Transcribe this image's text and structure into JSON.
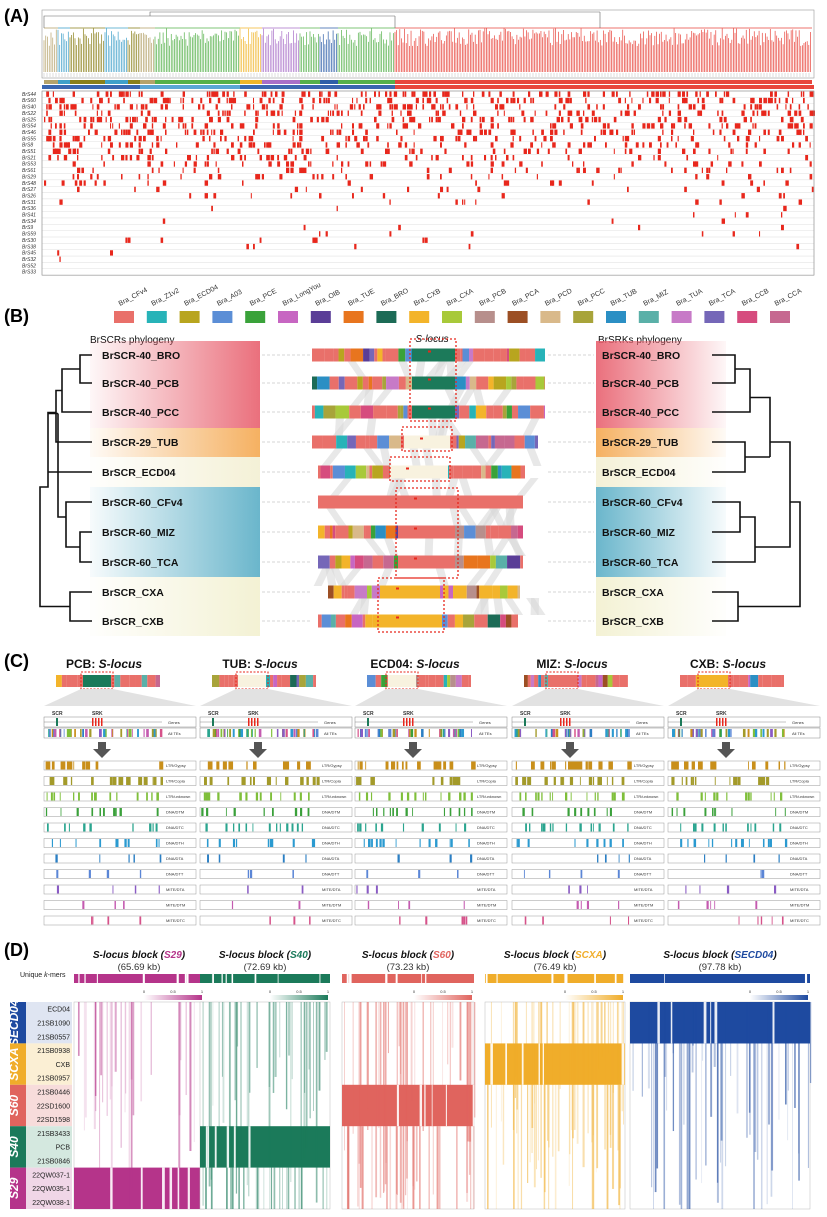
{
  "panels": {
    "a": "(A)",
    "b": "(B)",
    "c": "(C)",
    "d": "(D)"
  },
  "panelA": {
    "rows": [
      "BrS44",
      "BrS60",
      "BrS40",
      "BrS22",
      "BrS25",
      "BrS54",
      "BrS46",
      "BrS55",
      "BrS8",
      "BrS51",
      "BrS21",
      "BrS53",
      "BrS61",
      "BrS29",
      "BrS48",
      "BrS27",
      "BrS26",
      "BrS31",
      "BrS36",
      "BrS41",
      "BrS34",
      "BrS9",
      "BrS59",
      "BrS30",
      "BrS38",
      "BrS45",
      "BrS32",
      "BrS52",
      "BrS33"
    ],
    "clade_colors": [
      "#b5a36b",
      "#3fa0c9",
      "#8a7f1a",
      "#55b04a",
      "#f0b52a",
      "#a86fc8",
      "#2e5ea8",
      "#e8453c"
    ]
  },
  "legend": {
    "items": [
      {
        "label": "Bra_CFv4",
        "color": "#e9706a"
      },
      {
        "label": "Bra_Z1v2",
        "color": "#27b3b8"
      },
      {
        "label": "Bra_ECD04",
        "color": "#b8a51f"
      },
      {
        "label": "Bra_A03",
        "color": "#5b8ed6"
      },
      {
        "label": "Bra_PCE",
        "color": "#3aa23a"
      },
      {
        "label": "Bra_LongYou",
        "color": "#c766c2"
      },
      {
        "label": "Bra_OIB",
        "color": "#5a3d97"
      },
      {
        "label": "Bra_TUE",
        "color": "#e8751e"
      },
      {
        "label": "Bra_BRO",
        "color": "#1c6b56"
      },
      {
        "label": "Bra_CXB",
        "color": "#f3b42a"
      },
      {
        "label": "Bra_CXA",
        "color": "#a8c93a"
      },
      {
        "label": "Bra_PCB",
        "color": "#b78f8c"
      },
      {
        "label": "Bra_PCA",
        "color": "#9c4f24"
      },
      {
        "label": "Bra_PCD",
        "color": "#d9b98a"
      },
      {
        "label": "Bra_PCC",
        "color": "#a8a43a"
      },
      {
        "label": "Bra_TUB",
        "color": "#2b8fc4"
      },
      {
        "label": "Bra_MIZ",
        "color": "#5ab0a8"
      },
      {
        "label": "Bra_TUA",
        "color": "#c77ac7"
      },
      {
        "label": "Bra_TCA",
        "color": "#7567b8"
      },
      {
        "label": "Bra_CCB",
        "color": "#d64c7e"
      },
      {
        "label": "Bra_CCA",
        "color": "#c66890"
      }
    ]
  },
  "panelB": {
    "left_title": "BrSCRs phylogeny",
    "right_title": "BrSRKs phylogeny",
    "slocus": "S-locus",
    "taxa": [
      "BrSCR-40_BRO",
      "BrSCR-40_PCB",
      "BrSCR-40_PCC",
      "BrSCR-29_TUB",
      "BrSCR_ECD04",
      "BrSCR-60_CFv4",
      "BrSCR-60_MIZ",
      "BrSCR-60_TCA",
      "BrSCR_CXA",
      "BrSCR_CXB"
    ]
  },
  "panelC": {
    "loci": [
      {
        "prefix": "PCB:",
        "suffix": "S-locus"
      },
      {
        "prefix": "TUB:",
        "suffix": "S-locus"
      },
      {
        "prefix": "ECD04:",
        "suffix": "S-locus"
      },
      {
        "prefix": "MIZ:",
        "suffix": "S-locus"
      },
      {
        "prefix": "CXB:",
        "suffix": "S-locus"
      }
    ],
    "scr": "SCR",
    "srk": "SRK",
    "genes": "Genes",
    "all_tes": "All TEs",
    "tracks": [
      "LTR/Gypsy",
      "LTR/Copia",
      "LTR/unknown",
      "DNA/DTM",
      "DNA/DTC",
      "DNA/DTH",
      "DNA/DTA",
      "DNA/DTT",
      "MITE/DTA",
      "MITE/DTM",
      "MITE/DTC"
    ]
  },
  "panelD": {
    "unique_kmers_1": "Unique ",
    "unique_kmers_2": "k",
    "unique_kmers_3": "-mers",
    "blocks": [
      {
        "pre": "S-locus block (",
        "hap": "S29",
        "post": ")",
        "size": "(65.69 kb)",
        "color": "#b5348a"
      },
      {
        "pre": "S-locus block (",
        "hap": "S40",
        "post": ")",
        "size": "(72.69 kb)",
        "color": "#1b7a5a"
      },
      {
        "pre": "S-locus block (",
        "hap": "S60",
        "post": ")",
        "size": "(73.23 kb)",
        "color": "#e0645e"
      },
      {
        "pre": "S-locus block (",
        "hap": "SCXA",
        "post": ")",
        "size": "(76.49 kb)",
        "color": "#f0ad2a"
      },
      {
        "pre": "S-locus block (",
        "hap": "SECD04",
        "post": ")",
        "size": "(97.78 kb)",
        "color": "#1e4aa0"
      }
    ],
    "scale": {
      "min": "0",
      "mid": "0.5",
      "max": "1"
    },
    "rows": [
      "ECD04",
      "21SB1090",
      "21SB0557",
      "21SB0938",
      "CXB",
      "21SB0957",
      "21SB0446",
      "22SD1600",
      "22SD1598",
      "21SB3433",
      "PCB",
      "21SB0846",
      "22QW037-1",
      "22QW035-1",
      "22QW038-1"
    ],
    "groups": [
      {
        "label": "SECD04",
        "color": "#1e4aa0",
        "bg": "#dfe5f2",
        "rows": 3
      },
      {
        "label": "SCXA",
        "color": "#f0ad2a",
        "bg": "#fbefd4",
        "rows": 3
      },
      {
        "label": "S60",
        "color": "#e0645e",
        "bg": "#f7dcdb",
        "rows": 3
      },
      {
        "label": "S40",
        "color": "#1b7a5a",
        "bg": "#d4e8df",
        "rows": 3
      },
      {
        "label": "S29",
        "color": "#b5348a",
        "bg": "#f0d6e7",
        "rows": 3
      }
    ]
  }
}
